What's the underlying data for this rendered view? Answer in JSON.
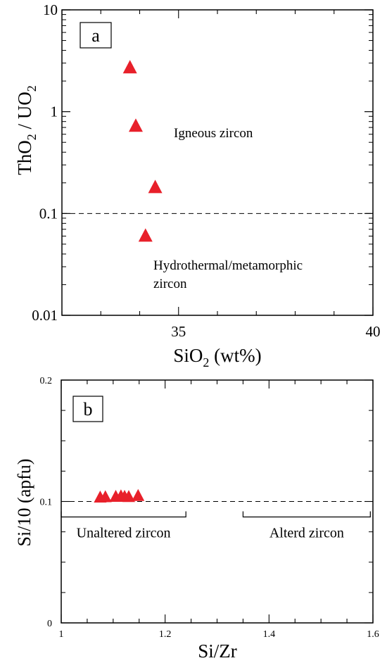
{
  "chart_data": [
    {
      "type": "scatter",
      "panel_label": "a",
      "xlabel_main": "SiO",
      "xlabel_sub": "2",
      "xlabel_rest": " (wt%)",
      "ylabel_parts": [
        "ThO",
        "2",
        " / UO",
        "2"
      ],
      "yscale": "log",
      "xlim": [
        32,
        40
      ],
      "ylim": [
        0.01,
        10
      ],
      "y_tick_labels": [
        "10",
        "1",
        "0.1",
        "0.01"
      ],
      "y_ticks": [
        10,
        1,
        0.1,
        0.01
      ],
      "x_tick_labels": [
        "35",
        "40"
      ],
      "x_ticks": [
        35,
        40
      ],
      "reference_line": {
        "y": 0.1,
        "style": "dashed"
      },
      "annotations": {
        "igneous": "Igneous zircon",
        "hydro_line1": "Hydrothermal/metamorphic",
        "hydro_line2": "zircon"
      },
      "marker_color": "#e8202a",
      "points": [
        {
          "x": 33.75,
          "y": 2.7
        },
        {
          "x": 33.9,
          "y": 0.72
        },
        {
          "x": 34.4,
          "y": 0.18
        },
        {
          "x": 34.15,
          "y": 0.06
        }
      ]
    },
    {
      "type": "scatter",
      "panel_label": "b",
      "xlabel": "Si/Zr",
      "ylabel": "Si/10 (apfu)",
      "xlim": [
        1.0,
        1.6
      ],
      "ylim": [
        0,
        0.2
      ],
      "x_tick_labels": [
        "1",
        "1.2",
        "1.4",
        "1.6"
      ],
      "x_ticks": [
        1.0,
        1.2,
        1.4,
        1.6
      ],
      "y_tick_labels": [
        "0",
        "0.1",
        "0.2"
      ],
      "y_ticks": [
        0,
        0.1,
        0.2
      ],
      "reference_line": {
        "y": 0.1,
        "style": "dashed"
      },
      "brackets": [
        {
          "label": "Unaltered zircon",
          "x_start": 1.0,
          "x_end": 1.24
        },
        {
          "label": "Alterd zircon",
          "x_start": 1.35,
          "x_end": 1.595
        }
      ],
      "marker_color": "#e8202a",
      "points": [
        {
          "x": 1.075,
          "y": 0.1032
        },
        {
          "x": 1.085,
          "y": 0.1035
        },
        {
          "x": 1.105,
          "y": 0.1038
        },
        {
          "x": 1.115,
          "y": 0.1042
        },
        {
          "x": 1.122,
          "y": 0.1038
        },
        {
          "x": 1.13,
          "y": 0.1036
        },
        {
          "x": 1.148,
          "y": 0.1045
        }
      ]
    }
  ]
}
